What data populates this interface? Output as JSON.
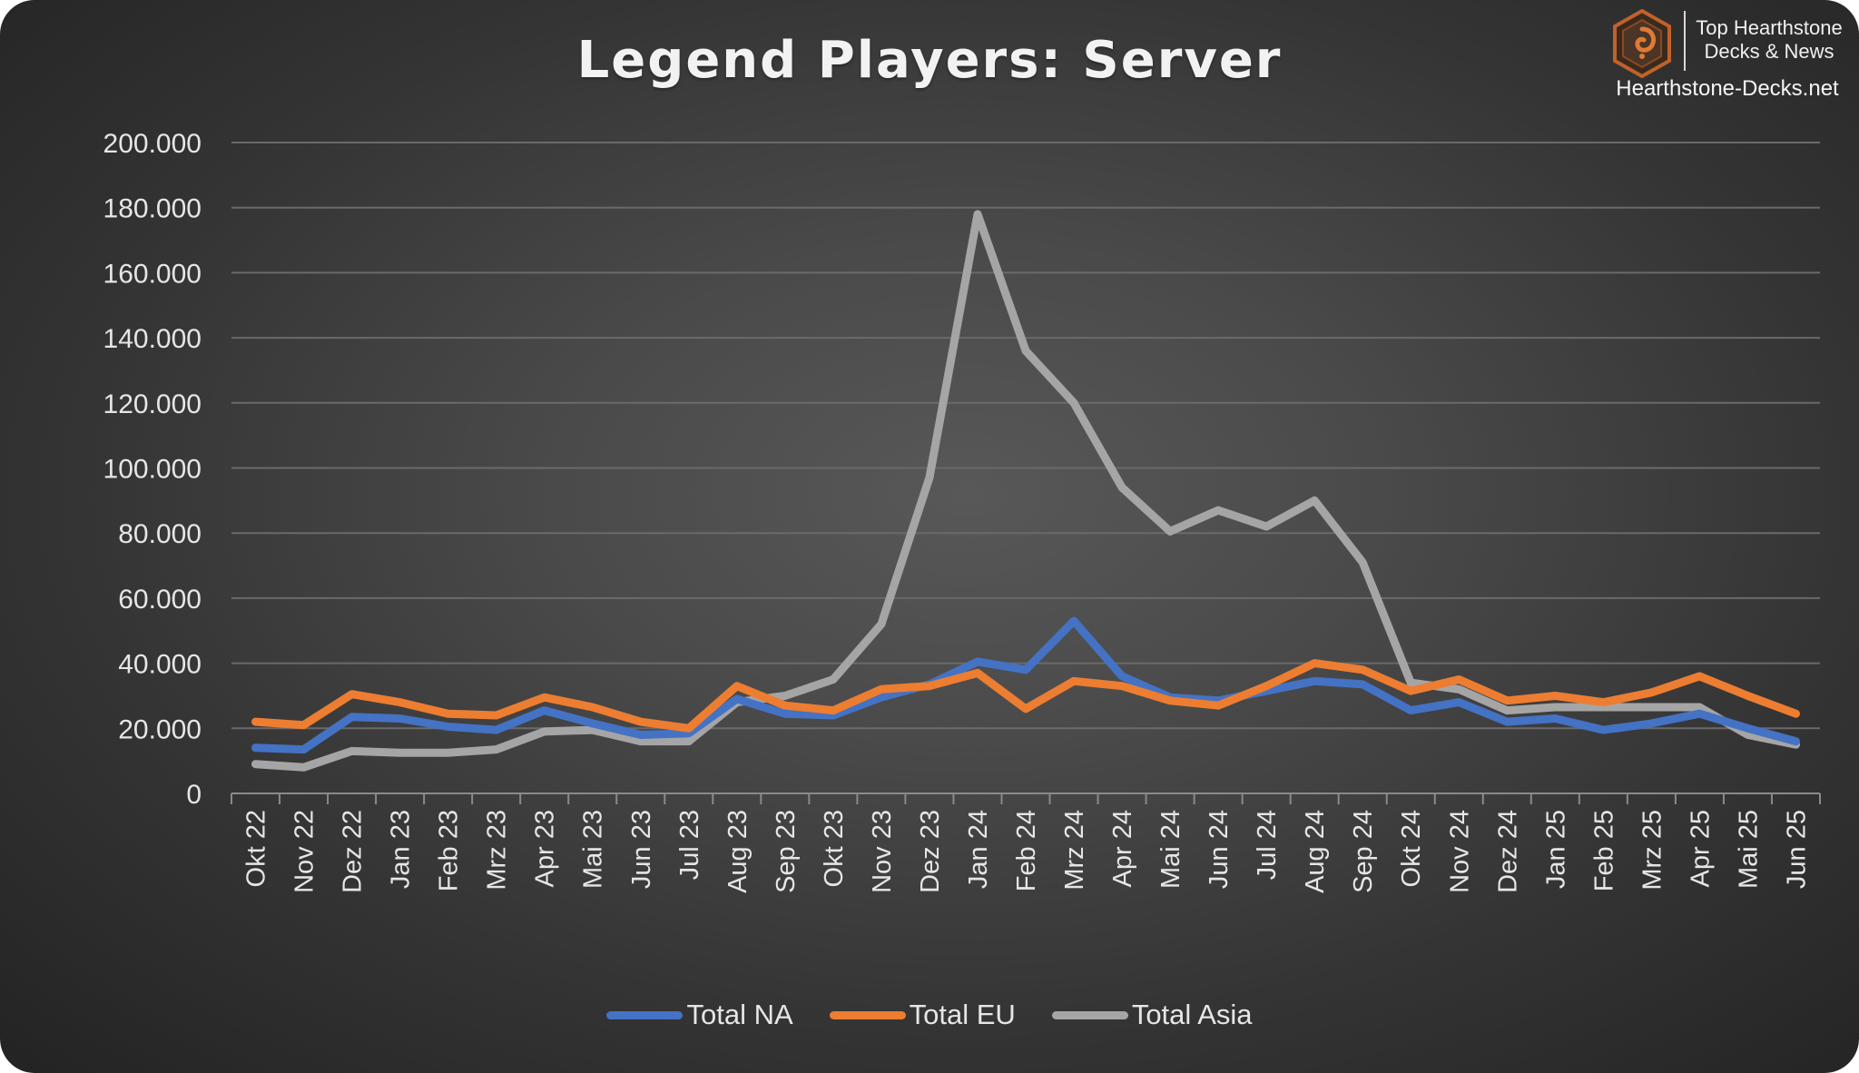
{
  "logo": {
    "line1": "Top Hearthstone",
    "line2": "Decks & News",
    "url": "Hearthstone-Decks.net",
    "icon": "hearthstone-logo-icon"
  },
  "colors": {
    "na": "#4472C4",
    "eu": "#ED7D31",
    "asia": "#A5A5A5",
    "grid": "#6a6a6a",
    "text": "#e6e6e6"
  },
  "chart_data": {
    "type": "line",
    "title": "Legend Players: Server",
    "xlabel": "",
    "ylabel": "",
    "ylim": [
      0,
      200000
    ],
    "yticks": [
      "0",
      "20.000",
      "40.000",
      "60.000",
      "80.000",
      "100.000",
      "120.000",
      "140.000",
      "160.000",
      "180.000",
      "200.000"
    ],
    "grid": true,
    "legend_position": "bottom",
    "categories": [
      "Okt 22",
      "Nov 22",
      "Dez 22",
      "Jan 23",
      "Feb 23",
      "Mrz 23",
      "Apr 23",
      "Mai 23",
      "Jun 23",
      "Jul 23",
      "Aug 23",
      "Sep 23",
      "Okt 23",
      "Nov 23",
      "Dez 23",
      "Jan 24",
      "Feb 24",
      "Mrz 24",
      "Apr 24",
      "Mai 24",
      "Jun 24",
      "Jul 24",
      "Aug 24",
      "Sep 24",
      "Okt 24",
      "Nov 24",
      "Dez 24",
      "Jan 25",
      "Feb 25",
      "Mrz 25",
      "Apr 25",
      "Mai 25",
      "Jun 25"
    ],
    "series": [
      {
        "name": "Total NA",
        "color": "#4472C4",
        "values": [
          14000,
          13500,
          23500,
          23000,
          20500,
          19500,
          25500,
          21500,
          18000,
          18500,
          29000,
          24500,
          24000,
          29500,
          33500,
          40500,
          38000,
          53000,
          36000,
          29500,
          28500,
          31500,
          34500,
          33500,
          25500,
          28000,
          22000,
          23000,
          19500,
          21500,
          24500,
          20000,
          16000
        ]
      },
      {
        "name": "Total EU",
        "color": "#ED7D31",
        "values": [
          22000,
          21000,
          30500,
          28000,
          24500,
          24000,
          29500,
          26500,
          22000,
          20000,
          33000,
          27000,
          25500,
          32000,
          33000,
          37000,
          26000,
          34500,
          33000,
          28500,
          27000,
          33000,
          40000,
          38000,
          31500,
          35000,
          28500,
          30000,
          28000,
          31000,
          36000,
          30000,
          24500
        ]
      },
      {
        "name": "Total Asia",
        "color": "#A5A5A5",
        "values": [
          9000,
          8000,
          13000,
          12500,
          12500,
          13500,
          19000,
          19500,
          16000,
          16000,
          28000,
          30000,
          35000,
          52000,
          97000,
          178000,
          136000,
          120000,
          94000,
          80500,
          87000,
          82000,
          90000,
          71000,
          34000,
          32000,
          25500,
          26500,
          26500,
          26500,
          26500,
          18000,
          15000
        ]
      }
    ]
  }
}
